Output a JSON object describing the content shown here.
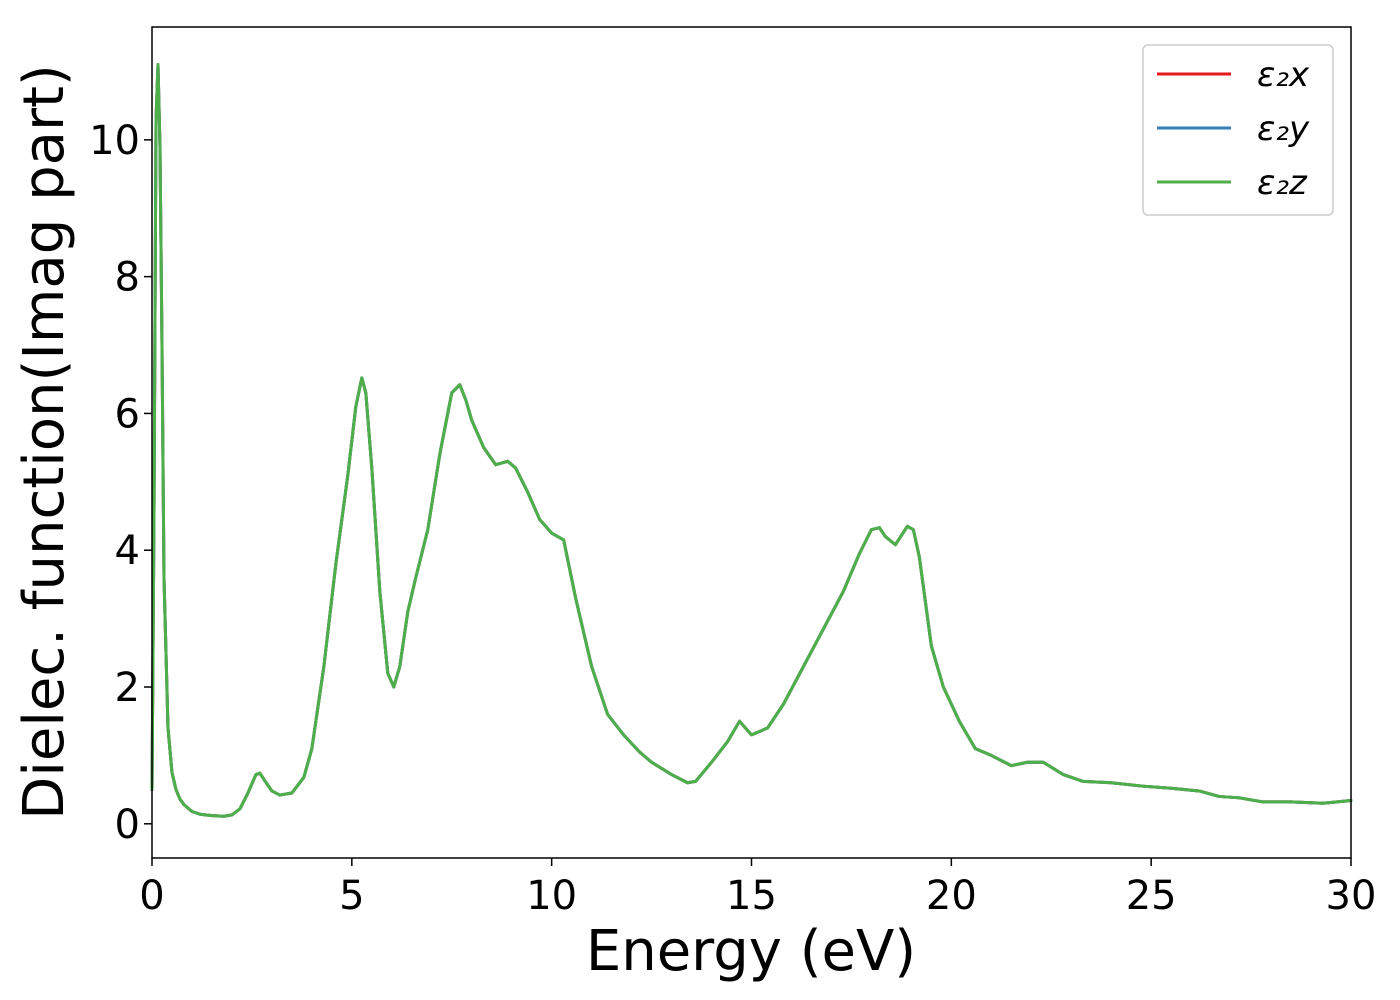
{
  "chart_data": {
    "type": "line",
    "title": "",
    "xlabel": "Energy (eV)",
    "ylabel": "Dielec. function(Imag part)",
    "xlim": [
      0,
      30
    ],
    "ylim": [
      -0.5,
      11.65
    ],
    "xticks": [
      0,
      5,
      10,
      15,
      20,
      25,
      30
    ],
    "yticks": [
      0,
      2,
      4,
      6,
      8,
      10
    ],
    "grid": false,
    "legend_position": "top-right",
    "x": [
      0,
      0.05,
      0.1,
      0.15,
      0.2,
      0.25,
      0.3,
      0.4,
      0.5,
      0.6,
      0.7,
      0.8,
      1.0,
      1.2,
      1.5,
      1.8,
      2.0,
      2.2,
      2.4,
      2.6,
      2.7,
      2.8,
      3.0,
      3.2,
      3.5,
      3.8,
      4.0,
      4.3,
      4.6,
      4.9,
      5.1,
      5.25,
      5.35,
      5.5,
      5.7,
      5.9,
      6.05,
      6.2,
      6.4,
      6.6,
      6.9,
      7.2,
      7.5,
      7.7,
      7.85,
      8.0,
      8.3,
      8.6,
      8.9,
      9.1,
      9.4,
      9.7,
      10.0,
      10.3,
      10.6,
      11.0,
      11.4,
      11.8,
      12.2,
      12.5,
      13.0,
      13.4,
      13.6,
      14.0,
      14.4,
      14.7,
      15.0,
      15.4,
      15.8,
      16.3,
      16.8,
      17.3,
      17.7,
      18.0,
      18.2,
      18.35,
      18.6,
      18.9,
      19.05,
      19.2,
      19.5,
      19.8,
      20.2,
      20.6,
      21.0,
      21.5,
      21.9,
      22.3,
      22.8,
      23.3,
      24.0,
      24.8,
      25.5,
      26.2,
      26.7,
      27.2,
      27.8,
      28.5,
      29.3,
      30.0
    ],
    "series": [
      {
        "name": "ε₂x",
        "color": "#e41a1c",
        "y": [
          0.5,
          4.5,
          10.3,
          11.1,
          9.9,
          7.0,
          3.6,
          1.4,
          0.75,
          0.5,
          0.36,
          0.28,
          0.18,
          0.14,
          0.12,
          0.11,
          0.13,
          0.22,
          0.45,
          0.72,
          0.74,
          0.65,
          0.48,
          0.42,
          0.45,
          0.68,
          1.1,
          2.3,
          3.8,
          5.1,
          6.1,
          6.52,
          6.3,
          5.2,
          3.4,
          2.2,
          2.0,
          2.3,
          3.1,
          3.6,
          4.3,
          5.4,
          6.3,
          6.42,
          6.2,
          5.9,
          5.5,
          5.25,
          5.3,
          5.2,
          4.85,
          4.45,
          4.25,
          4.15,
          3.3,
          2.3,
          1.6,
          1.3,
          1.05,
          0.9,
          0.72,
          0.6,
          0.62,
          0.9,
          1.2,
          1.5,
          1.3,
          1.4,
          1.75,
          2.3,
          2.85,
          3.4,
          3.95,
          4.3,
          4.33,
          4.2,
          4.08,
          4.35,
          4.3,
          3.9,
          2.6,
          2.0,
          1.5,
          1.1,
          1.0,
          0.85,
          0.9,
          0.9,
          0.72,
          0.62,
          0.6,
          0.55,
          0.52,
          0.48,
          0.4,
          0.38,
          0.32,
          0.32,
          0.3,
          0.34
        ]
      },
      {
        "name": "ε₂y",
        "color": "#377eb8",
        "y": [
          0.5,
          4.5,
          10.3,
          11.1,
          9.9,
          7.0,
          3.6,
          1.4,
          0.75,
          0.5,
          0.36,
          0.28,
          0.18,
          0.14,
          0.12,
          0.11,
          0.13,
          0.22,
          0.45,
          0.72,
          0.74,
          0.65,
          0.48,
          0.42,
          0.45,
          0.68,
          1.1,
          2.3,
          3.8,
          5.1,
          6.1,
          6.52,
          6.3,
          5.2,
          3.4,
          2.2,
          2.0,
          2.3,
          3.1,
          3.6,
          4.3,
          5.4,
          6.3,
          6.42,
          6.2,
          5.9,
          5.5,
          5.25,
          5.3,
          5.2,
          4.85,
          4.45,
          4.25,
          4.15,
          3.3,
          2.3,
          1.6,
          1.3,
          1.05,
          0.9,
          0.72,
          0.6,
          0.62,
          0.9,
          1.2,
          1.5,
          1.3,
          1.4,
          1.75,
          2.3,
          2.85,
          3.4,
          3.95,
          4.3,
          4.33,
          4.2,
          4.08,
          4.35,
          4.3,
          3.9,
          2.6,
          2.0,
          1.5,
          1.1,
          1.0,
          0.85,
          0.9,
          0.9,
          0.72,
          0.62,
          0.6,
          0.55,
          0.52,
          0.48,
          0.4,
          0.38,
          0.32,
          0.32,
          0.3,
          0.34
        ]
      },
      {
        "name": "ε₂z",
        "color": "#4daf4a",
        "y": [
          0.5,
          4.5,
          10.3,
          11.1,
          9.9,
          7.0,
          3.6,
          1.4,
          0.75,
          0.5,
          0.36,
          0.28,
          0.18,
          0.14,
          0.12,
          0.11,
          0.13,
          0.22,
          0.45,
          0.72,
          0.74,
          0.65,
          0.48,
          0.42,
          0.45,
          0.68,
          1.1,
          2.3,
          3.8,
          5.1,
          6.1,
          6.52,
          6.3,
          5.2,
          3.4,
          2.2,
          2.0,
          2.3,
          3.1,
          3.6,
          4.3,
          5.4,
          6.3,
          6.42,
          6.2,
          5.9,
          5.5,
          5.25,
          5.3,
          5.2,
          4.85,
          4.45,
          4.25,
          4.15,
          3.3,
          2.3,
          1.6,
          1.3,
          1.05,
          0.9,
          0.72,
          0.6,
          0.62,
          0.9,
          1.2,
          1.5,
          1.3,
          1.4,
          1.75,
          2.3,
          2.85,
          3.4,
          3.95,
          4.3,
          4.33,
          4.2,
          4.08,
          4.35,
          4.3,
          3.9,
          2.6,
          2.0,
          1.5,
          1.1,
          1.0,
          0.85,
          0.9,
          0.9,
          0.72,
          0.62,
          0.6,
          0.55,
          0.52,
          0.48,
          0.4,
          0.38,
          0.32,
          0.32,
          0.3,
          0.34
        ]
      }
    ]
  }
}
